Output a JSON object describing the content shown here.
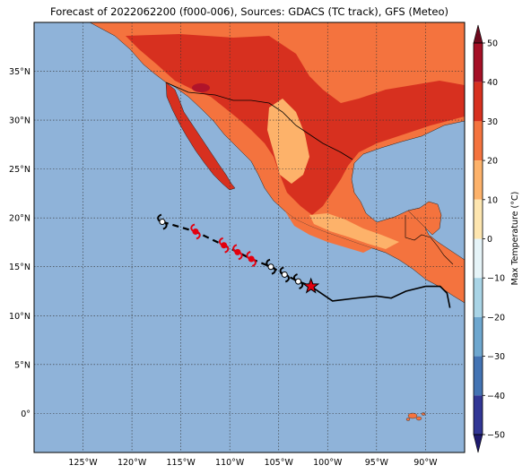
{
  "title": "Forecast of 2022062200 (f000-006), Sources: GDACS (TC track), GFS (Meteo)",
  "map": {
    "lon_range": [
      -130,
      -86
    ],
    "lat_range": [
      -4,
      40
    ],
    "lon_ticks": [
      {
        "value": -125,
        "label": "125°W"
      },
      {
        "value": -120,
        "label": "120°W"
      },
      {
        "value": -115,
        "label": "115°W"
      },
      {
        "value": -110,
        "label": "110°W"
      },
      {
        "value": -105,
        "label": "105°W"
      },
      {
        "value": -100,
        "label": "100°W"
      },
      {
        "value": -95,
        "label": "95°W"
      },
      {
        "value": -90,
        "label": "90°W"
      }
    ],
    "lat_ticks": [
      {
        "value": 0,
        "label": "0°"
      },
      {
        "value": 5,
        "label": "5°N"
      },
      {
        "value": 10,
        "label": "10°N"
      },
      {
        "value": 15,
        "label": "15°N"
      },
      {
        "value": 20,
        "label": "20°N"
      },
      {
        "value": 25,
        "label": "25°N"
      },
      {
        "value": 30,
        "label": "30°N"
      },
      {
        "value": 35,
        "label": "35°N"
      }
    ],
    "colors": {
      "ocean": "#8fb3d9",
      "land_warm": "#f4733e",
      "land_hot": "#d7301f",
      "land_mild": "#fdb26a",
      "land_cool": "#fee6b0",
      "land_extreme": "#b0142a"
    }
  },
  "track": {
    "observed_path": [
      [
        -116.9,
        19.6
      ],
      [
        -114.9,
        18.9
      ],
      [
        -113.2,
        18.4
      ],
      [
        -111.5,
        17.6
      ],
      [
        -110.3,
        17.1
      ]
    ],
    "forecast_positions": [
      {
        "lon": -113.5,
        "lat": 18.6,
        "type": "hurricane-red"
      },
      {
        "lon": -110.6,
        "lat": 17.2,
        "type": "hurricane-red"
      },
      {
        "lon": -109.2,
        "lat": 16.5,
        "type": "hurricane-red"
      },
      {
        "lon": -107.8,
        "lat": 15.8,
        "type": "hurricane-red"
      },
      {
        "lon": -105.8,
        "lat": 15.0,
        "type": "storm-white"
      },
      {
        "lon": -104.4,
        "lat": 14.2,
        "type": "storm-white"
      },
      {
        "lon": -103.0,
        "lat": 13.5,
        "type": "storm-white"
      },
      {
        "lon": -116.9,
        "lat": 19.6,
        "type": "storm-white"
      }
    ],
    "path_points": [
      [
        -116.9,
        19.6
      ],
      [
        -113.5,
        18.6
      ],
      [
        -110.6,
        17.2
      ],
      [
        -109.2,
        16.5
      ],
      [
        -107.8,
        15.8
      ],
      [
        -105.8,
        15.0
      ],
      [
        -104.4,
        14.2
      ],
      [
        -103.0,
        13.5
      ],
      [
        -101.7,
        13.0
      ]
    ],
    "current_position": {
      "lon": -101.7,
      "lat": 13.0
    },
    "future_path": [
      [
        -101.7,
        13.0
      ],
      [
        -99.5,
        11.5
      ],
      [
        -97.0,
        11.8
      ],
      [
        -95.0,
        12.0
      ],
      [
        -93.5,
        11.8
      ],
      [
        -92.0,
        12.5
      ],
      [
        -90.0,
        13.0
      ],
      [
        -88.5,
        13.0
      ],
      [
        -87.8,
        12.3
      ],
      [
        -87.5,
        10.8
      ]
    ]
  },
  "colorbar": {
    "label": "Max Temperature (°C)",
    "min": -50,
    "max": 50,
    "ticks": [
      {
        "value": 50,
        "label": "50"
      },
      {
        "value": 40,
        "label": "40"
      },
      {
        "value": 30,
        "label": "30"
      },
      {
        "value": 20,
        "label": "20"
      },
      {
        "value": 10,
        "label": "10"
      },
      {
        "value": 0,
        "label": "0"
      },
      {
        "value": -10,
        "label": "−10"
      },
      {
        "value": -20,
        "label": "−20"
      },
      {
        "value": -30,
        "label": "−30"
      },
      {
        "value": -40,
        "label": "−40"
      },
      {
        "value": -50,
        "label": "−50"
      }
    ],
    "bands": [
      {
        "from": 40,
        "to": 50,
        "color": "#a50f26"
      },
      {
        "from": 30,
        "to": 40,
        "color": "#d7301f"
      },
      {
        "from": 20,
        "to": 30,
        "color": "#f4733e"
      },
      {
        "from": 10,
        "to": 20,
        "color": "#fdb26a"
      },
      {
        "from": 0,
        "to": 10,
        "color": "#fee6b0"
      },
      {
        "from": -10,
        "to": 0,
        "color": "#e6f4f8"
      },
      {
        "from": -20,
        "to": -10,
        "color": "#a9d4e6"
      },
      {
        "from": -30,
        "to": -20,
        "color": "#6ea7cf"
      },
      {
        "from": -40,
        "to": -30,
        "color": "#4373b3"
      },
      {
        "from": -50,
        "to": -40,
        "color": "#313695"
      }
    ],
    "extend_top_color": "#6e0a1e",
    "extend_bottom_color": "#1e1a6e"
  }
}
